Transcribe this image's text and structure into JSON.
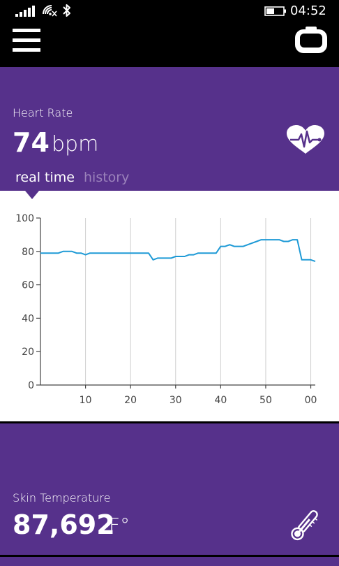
{
  "status_bar": {
    "time": "04:52",
    "icons": [
      "signal-icon",
      "wifi-icon",
      "bluetooth-icon",
      "battery-icon"
    ]
  },
  "app_bar": {
    "icons": [
      "hamburger-menu-icon",
      "band-device-icon"
    ]
  },
  "heart_rate": {
    "label": "Heart Rate",
    "value": "74",
    "unit": "bpm",
    "icon": "heart-pulse-icon",
    "tabs": [
      {
        "label": "real time",
        "active": true
      },
      {
        "label": "history",
        "active": false
      }
    ]
  },
  "chart_data": {
    "type": "line",
    "title": "",
    "xlabel": "",
    "ylabel": "",
    "ylim": [
      0,
      100
    ],
    "xlim": [
      0,
      61
    ],
    "y_ticks": [
      "0",
      "20",
      "40",
      "60",
      "80",
      "100"
    ],
    "x_tick_values": [
      10,
      20,
      30,
      40,
      50,
      60
    ],
    "x_ticks": [
      "10",
      "20",
      "30",
      "40",
      "50",
      "00"
    ],
    "grid": "vertical",
    "line_color": "#1e9ad6",
    "series": [
      {
        "x": [
          0,
          3,
          4,
          5,
          6,
          7,
          8,
          9,
          10,
          11,
          12,
          15,
          20,
          24,
          25,
          26,
          27,
          28,
          29,
          30,
          31,
          32,
          33,
          34,
          35,
          36,
          37,
          38,
          39,
          40,
          41,
          42,
          43,
          44,
          45,
          46,
          47,
          48,
          49,
          50,
          51,
          52,
          53,
          54,
          55,
          56,
          57,
          58,
          59,
          60,
          61
        ],
        "values": [
          79,
          79,
          79,
          80,
          80,
          80,
          79,
          79,
          78,
          79,
          79,
          79,
          79,
          79,
          75,
          76,
          76,
          76,
          76,
          77,
          77,
          77,
          78,
          78,
          79,
          79,
          79,
          79,
          79,
          83,
          83,
          84,
          83,
          83,
          83,
          84,
          85,
          86,
          87,
          87,
          87,
          87,
          87,
          86,
          86,
          87,
          87,
          75,
          75,
          75,
          74
        ]
      }
    ]
  },
  "skin_temperature": {
    "label": "Skin Temperature",
    "value": "87,692",
    "unit": "F°",
    "icon": "thermometer-icon"
  }
}
